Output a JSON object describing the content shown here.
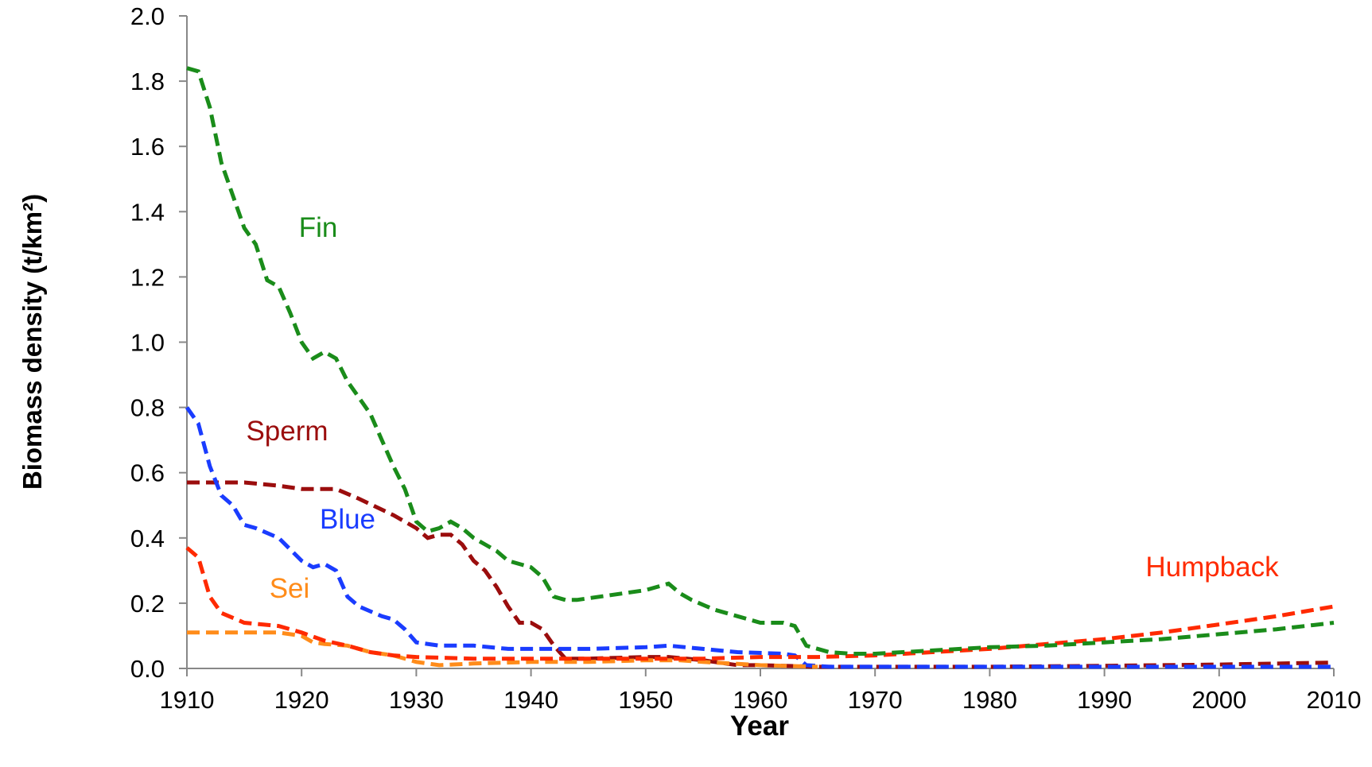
{
  "chart_data": {
    "type": "line",
    "x_label": "Year",
    "y_label": "Biomass density (t/km²)",
    "xlim": [
      1910,
      2010
    ],
    "xticks": [
      1910,
      1920,
      1930,
      1940,
      1950,
      1960,
      1970,
      1980,
      1990,
      2000,
      2010
    ],
    "ylim": [
      0,
      2.0
    ],
    "yticks": [
      {
        "value": 0,
        "label": "0.0"
      },
      {
        "value": 0.2,
        "label": "0.2"
      },
      {
        "value": 0.4,
        "label": "0.4"
      },
      {
        "value": 0.6,
        "label": "0.6"
      },
      {
        "value": 0.8,
        "label": "0.8"
      },
      {
        "value": 1.0,
        "label": "1.0"
      },
      {
        "value": 1.2,
        "label": "1.2"
      },
      {
        "value": 1.4,
        "label": "1.4"
      },
      {
        "value": 1.6,
        "label": "1.6"
      },
      {
        "value": 1.8,
        "label": "1.8"
      },
      {
        "value": 2.0,
        "label": "2.0"
      }
    ],
    "grid": false,
    "dashed": true,
    "series": [
      {
        "name": "Sperm",
        "color": "#9b0d0d",
        "x": [
          1910,
          1915,
          1918,
          1920,
          1923,
          1925,
          1928,
          1930,
          1931,
          1932,
          1933,
          1934,
          1935,
          1936,
          1937,
          1938,
          1939,
          1940,
          1941,
          1942,
          1943,
          1945,
          1950,
          1952,
          1955,
          1958,
          1960,
          1965,
          1970,
          1980,
          1990,
          2000,
          2010
        ],
        "values": [
          0.57,
          0.57,
          0.56,
          0.55,
          0.55,
          0.52,
          0.47,
          0.43,
          0.4,
          0.41,
          0.41,
          0.38,
          0.33,
          0.3,
          0.25,
          0.19,
          0.14,
          0.14,
          0.12,
          0.07,
          0.03,
          0.03,
          0.035,
          0.035,
          0.025,
          0.01,
          0.01,
          0.005,
          0.005,
          0.005,
          0.008,
          0.012,
          0.018
        ]
      },
      {
        "name": "Blue",
        "color": "#1a3cff",
        "x": [
          1910,
          1911,
          1912,
          1913,
          1914,
          1915,
          1916,
          1918,
          1920,
          1921,
          1922,
          1923,
          1924,
          1925,
          1927,
          1928,
          1929,
          1930,
          1932,
          1935,
          1938,
          1942,
          1945,
          1950,
          1952,
          1955,
          1958,
          1962,
          1963,
          1964,
          1966,
          1970,
          1980,
          2010
        ],
        "values": [
          0.8,
          0.75,
          0.62,
          0.53,
          0.5,
          0.44,
          0.43,
          0.4,
          0.33,
          0.31,
          0.32,
          0.3,
          0.22,
          0.19,
          0.16,
          0.15,
          0.12,
          0.08,
          0.07,
          0.07,
          0.06,
          0.06,
          0.06,
          0.065,
          0.07,
          0.06,
          0.05,
          0.045,
          0.04,
          0.01,
          0.005,
          0.005,
          0.005,
          0.005
        ]
      },
      {
        "name": "Sei",
        "color": "#ff8c1a",
        "x": [
          1910,
          1915,
          1918,
          1920,
          1921,
          1922,
          1924,
          1926,
          1928,
          1930,
          1932,
          1935,
          1940,
          1945,
          1950,
          1953,
          1955,
          1960,
          1965
        ],
        "values": [
          0.11,
          0.11,
          0.11,
          0.1,
          0.08,
          0.075,
          0.07,
          0.05,
          0.04,
          0.02,
          0.01,
          0.015,
          0.02,
          0.02,
          0.025,
          0.025,
          0.02,
          0.01,
          0.005
        ]
      },
      {
        "name": "Humpback",
        "color": "#ff2a00",
        "x": [
          1910,
          1911,
          1912,
          1913,
          1915,
          1918,
          1920,
          1922,
          1924,
          1926,
          1928,
          1930,
          1935,
          1940,
          1945,
          1950,
          1955,
          1960,
          1965,
          1970,
          1975,
          1980,
          1985,
          1990,
          1995,
          2000,
          2005,
          2010
        ],
        "values": [
          0.37,
          0.34,
          0.22,
          0.17,
          0.14,
          0.13,
          0.11,
          0.085,
          0.07,
          0.05,
          0.04,
          0.035,
          0.03,
          0.03,
          0.03,
          0.03,
          0.03,
          0.035,
          0.035,
          0.04,
          0.05,
          0.06,
          0.075,
          0.09,
          0.11,
          0.135,
          0.16,
          0.19
        ]
      },
      {
        "name": "Fin",
        "color": "#1a8c1a",
        "x": [
          1910,
          1911,
          1912,
          1913,
          1914,
          1915,
          1916,
          1917,
          1918,
          1919,
          1920,
          1921,
          1922,
          1923,
          1924,
          1925,
          1926,
          1927,
          1928,
          1929,
          1930,
          1931,
          1932,
          1933,
          1934,
          1935,
          1936,
          1937,
          1938,
          1939,
          1940,
          1941,
          1942,
          1943,
          1944,
          1946,
          1948,
          1950,
          1952,
          1953,
          1954,
          1956,
          1958,
          1960,
          1962,
          1963,
          1964,
          1966,
          1968,
          1970,
          1975,
          1980,
          1985,
          1990,
          1995,
          2000,
          2005,
          2010
        ],
        "values": [
          1.84,
          1.83,
          1.72,
          1.55,
          1.45,
          1.35,
          1.3,
          1.19,
          1.17,
          1.09,
          1.0,
          0.95,
          0.97,
          0.95,
          0.88,
          0.83,
          0.78,
          0.7,
          0.62,
          0.55,
          0.45,
          0.42,
          0.43,
          0.45,
          0.43,
          0.4,
          0.38,
          0.36,
          0.33,
          0.32,
          0.31,
          0.28,
          0.22,
          0.21,
          0.21,
          0.22,
          0.23,
          0.24,
          0.26,
          0.23,
          0.21,
          0.18,
          0.16,
          0.14,
          0.14,
          0.13,
          0.07,
          0.05,
          0.045,
          0.045,
          0.055,
          0.065,
          0.07,
          0.08,
          0.09,
          0.105,
          0.12,
          0.14
        ]
      }
    ]
  }
}
